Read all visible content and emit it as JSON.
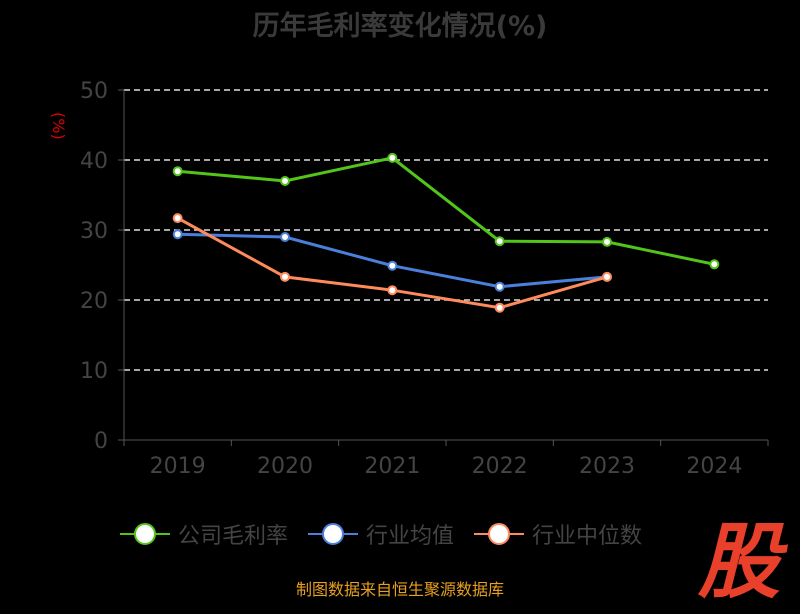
{
  "chart_data": {
    "type": "line",
    "title": "历年毛利率变化情况(%)",
    "ylabel": "(%)",
    "xlabel": "",
    "categories": [
      "2019",
      "2020",
      "2021",
      "2022",
      "2023",
      "2024"
    ],
    "ylim": [
      0,
      50
    ],
    "yticks": [
      0,
      10,
      20,
      30,
      40,
      50
    ],
    "grid": true,
    "legend_position": "bottom",
    "series": [
      {
        "name": "公司毛利率",
        "color": "#52c41a",
        "values": [
          38.4,
          37.0,
          40.3,
          28.4,
          28.3,
          25.1
        ]
      },
      {
        "name": "行业均值",
        "color": "#4a7fdc",
        "values": [
          29.4,
          29.0,
          24.9,
          21.9,
          23.3,
          null
        ]
      },
      {
        "name": "行业中位数",
        "color": "#ff8a5b",
        "values": [
          31.7,
          23.3,
          21.4,
          18.9,
          23.3,
          null
        ]
      }
    ]
  },
  "footer": "制图数据来自恒生聚源数据库",
  "logo_text": "股"
}
